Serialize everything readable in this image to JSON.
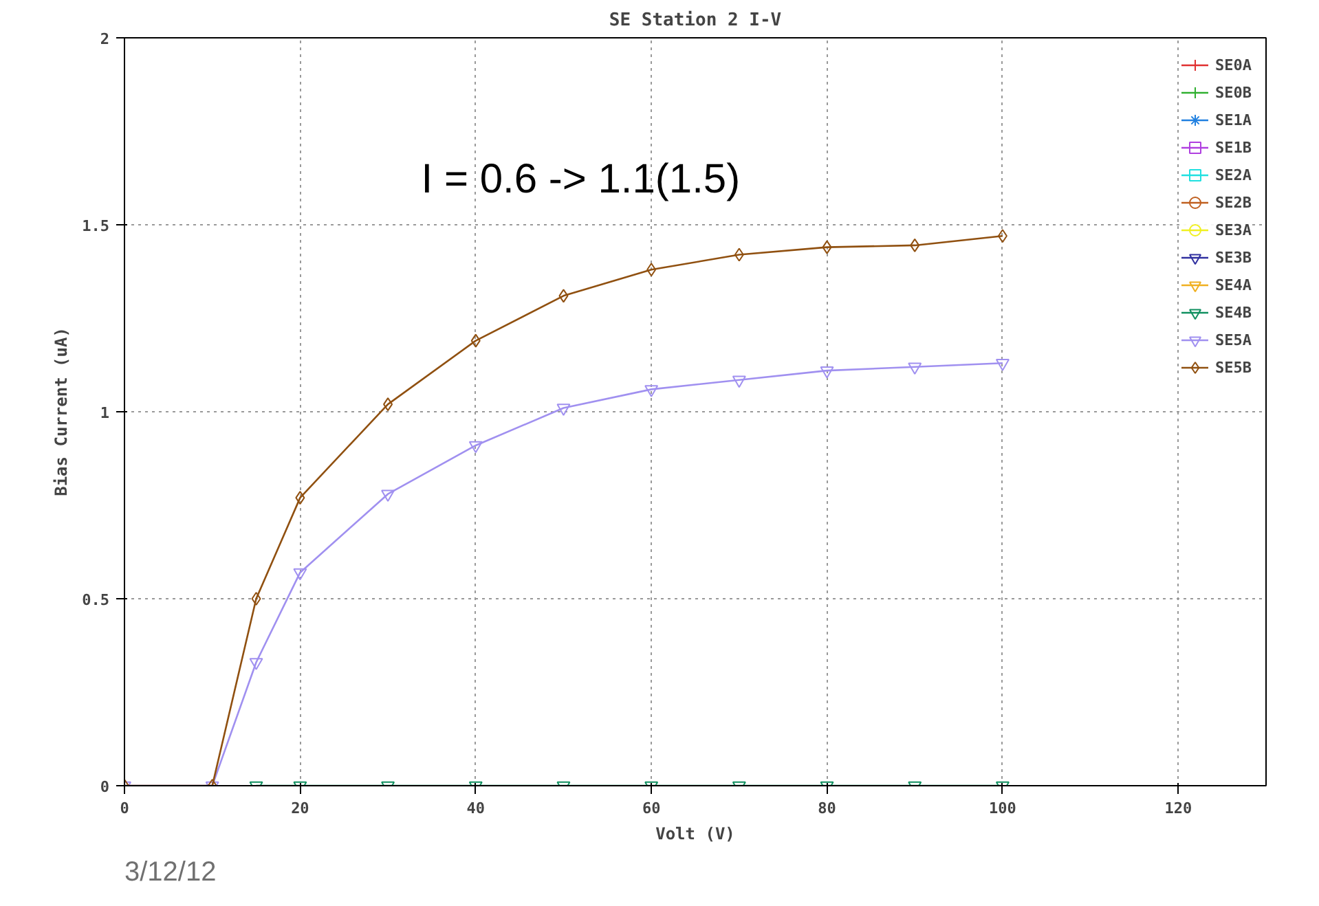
{
  "chart_data": {
    "type": "line",
    "title": "SE Station 2 I-V",
    "xlabel": "Volt (V)",
    "ylabel": "Bias Current (uA)",
    "x": [
      0,
      10,
      15,
      20,
      30,
      40,
      50,
      60,
      70,
      80,
      90,
      100
    ],
    "xlim": [
      0,
      130
    ],
    "xticks": [
      0,
      20,
      40,
      60,
      80,
      100,
      120
    ],
    "ylim": [
      0,
      2
    ],
    "yticks": [
      0,
      0.5,
      1,
      1.5,
      2
    ],
    "grid": true,
    "legend": "top right",
    "annotations": [
      "I =  0.6 -> 1.1(1.5)",
      "3/12/12"
    ],
    "series": [
      {
        "name": "SE0A",
        "color": "#e03030",
        "marker": "cross",
        "values": [
          null,
          null,
          null,
          null,
          null,
          null,
          null,
          null,
          null,
          null,
          null,
          null
        ]
      },
      {
        "name": "SE0B",
        "color": "#30b030",
        "marker": "cross",
        "values": [
          null,
          null,
          null,
          null,
          null,
          null,
          null,
          null,
          null,
          null,
          null,
          null
        ]
      },
      {
        "name": "SE1A",
        "color": "#2080e0",
        "marker": "star",
        "values": [
          null,
          null,
          null,
          null,
          null,
          null,
          null,
          null,
          null,
          null,
          null,
          null
        ]
      },
      {
        "name": "SE1B",
        "color": "#b040e0",
        "marker": "square",
        "values": [
          null,
          null,
          null,
          null,
          null,
          null,
          null,
          null,
          null,
          null,
          null,
          null
        ]
      },
      {
        "name": "SE2A",
        "color": "#20e0e0",
        "marker": "square",
        "values": [
          null,
          null,
          null,
          null,
          null,
          null,
          null,
          null,
          null,
          null,
          null,
          null
        ]
      },
      {
        "name": "SE2B",
        "color": "#c06020",
        "marker": "circle",
        "values": [
          null,
          null,
          null,
          null,
          null,
          null,
          null,
          null,
          null,
          null,
          null,
          null
        ]
      },
      {
        "name": "SE3A",
        "color": "#f0f020",
        "marker": "circle",
        "values": [
          null,
          null,
          null,
          null,
          null,
          null,
          null,
          null,
          null,
          null,
          null,
          null
        ]
      },
      {
        "name": "SE3B",
        "color": "#3030a0",
        "marker": "triangle",
        "values": [
          null,
          null,
          null,
          null,
          null,
          null,
          null,
          null,
          null,
          null,
          null,
          null
        ]
      },
      {
        "name": "SE4A",
        "color": "#f0b020",
        "marker": "triangle",
        "values": [
          null,
          null,
          null,
          null,
          null,
          null,
          null,
          null,
          null,
          null,
          null,
          null
        ]
      },
      {
        "name": "SE4B",
        "color": "#109060",
        "marker": "triangle",
        "values": [
          null,
          null,
          0,
          0,
          0,
          0,
          0,
          0,
          0,
          0,
          0,
          0
        ]
      },
      {
        "name": "SE5A",
        "color": "#a090f0",
        "marker": "triangle",
        "values": [
          0,
          0,
          0.33,
          0.57,
          0.78,
          0.91,
          1.01,
          1.06,
          1.085,
          1.11,
          1.12,
          1.13
        ]
      },
      {
        "name": "SE5B",
        "color": "#905010",
        "marker": "diamond",
        "values": [
          0,
          0,
          0.5,
          0.77,
          1.02,
          1.19,
          1.31,
          1.38,
          1.42,
          1.44,
          1.445,
          1.47
        ]
      }
    ]
  }
}
